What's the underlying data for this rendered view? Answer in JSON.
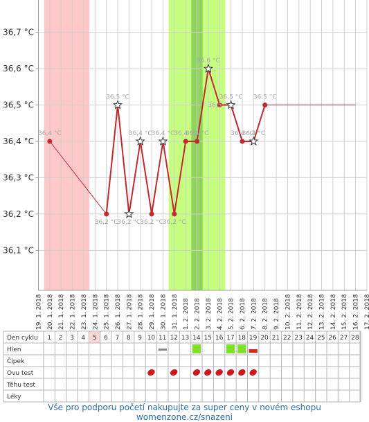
{
  "chart_data": {
    "type": "line",
    "y_ticks": [
      "36,1 °C",
      "36,2 °C",
      "36,3 °C",
      "36,4 °C",
      "36,5 °C",
      "36,6 °C",
      "36,7 °C"
    ],
    "y_tick_values": [
      36.1,
      36.2,
      36.3,
      36.4,
      36.5,
      36.6,
      36.7
    ],
    "ylim": [
      35.99,
      36.8
    ],
    "x_dates": [
      "19. 1. 2018",
      "20. 1. 2018",
      "21. 1. 2018",
      "22. 1. 2018",
      "23. 1. 2018",
      "24. 1. 2018",
      "25. 1. 2018",
      "26. 1. 2018",
      "27. 1. 2018",
      "28. 1. 2018",
      "29. 1. 2018",
      "30. 1. 2018",
      "31. 1. 2018",
      "1. 2. 2018",
      "2. 2. 2018",
      "3. 2. 2018",
      "4. 2. 2018",
      "5. 2. 2018",
      "6. 2. 2018",
      "7. 2. 2018",
      "8. 2. 2018",
      "9. 2. 2018",
      "10. 2. 2018",
      "11. 2. 2018",
      "12. 2. 2018",
      "13. 2. 2018",
      "14. 2. 2018",
      "15. 2. 2018",
      "16. 2. 2018",
      "17. 2. 2018"
    ],
    "series": [
      {
        "color": "#c0282d",
        "points": [
          {
            "x": "20. 1. 2018",
            "y": 36.4,
            "label": "36,4 °C",
            "marker": "dot"
          },
          {
            "x": "25. 1. 2018",
            "y": 36.2,
            "label": "36,2 °C",
            "marker": "dot"
          },
          {
            "x": "26. 1. 2018",
            "y": 36.5,
            "label": "36,5 °C",
            "marker": "star"
          },
          {
            "x": "27. 1. 2018",
            "y": 36.2,
            "label": "36,2 °C",
            "marker": "star"
          },
          {
            "x": "28. 1. 2018",
            "y": 36.4,
            "label": "36,4 °C",
            "marker": "star"
          },
          {
            "x": "29. 1. 2018",
            "y": 36.2,
            "label": "36,2 °C",
            "marker": "dot"
          },
          {
            "x": "30. 1. 2018",
            "y": 36.4,
            "label": "36,4 °C",
            "marker": "star"
          },
          {
            "x": "31. 1. 2018",
            "y": 36.2,
            "label": "36,2 °C",
            "marker": "dot"
          },
          {
            "x": "1. 2. 2018",
            "y": 36.4,
            "label": "36,4 °C",
            "marker": "dot"
          },
          {
            "x": "2. 2. 2018",
            "y": 36.4,
            "label": "36,4 °C",
            "marker": "dot"
          },
          {
            "x": "3. 2. 2018",
            "y": 36.6,
            "label": "36,6 °C",
            "marker": "star"
          },
          {
            "x": "4. 2. 2018",
            "y": 36.5,
            "label": "36,5 °C",
            "marker": "dot"
          },
          {
            "x": "5. 2. 2018",
            "y": 36.5,
            "label": "36,5 °C",
            "marker": "star"
          },
          {
            "x": "6. 2. 2018",
            "y": 36.4,
            "label": "36,4 °C",
            "marker": "dot"
          },
          {
            "x": "7. 2. 2018",
            "y": 36.4,
            "label": "36,4 °C",
            "marker": "star"
          },
          {
            "x": "8. 2. 2018",
            "y": 36.5,
            "label": "36,5 °C",
            "marker": "dot"
          }
        ],
        "extension": {
          "from": "8. 2. 2018",
          "to": "16. 2. 2018",
          "y": 36.5
        }
      }
    ],
    "bands": [
      {
        "from": "20. 1. 2018",
        "to": "23. 1. 2018",
        "color": "#ffc8c8"
      },
      {
        "from": "31. 1. 2018",
        "to": "4. 2. 2018",
        "color": "#c6ff80"
      },
      {
        "from": "2. 2. 2018",
        "to": "2. 2. 2018",
        "color": "#8fd45c"
      }
    ],
    "grid": true,
    "table": {
      "row_labels": [
        "Den cyklu",
        "Hlen",
        "Čípek",
        "Ovu test",
        "Těhu test",
        "Léky"
      ],
      "cycle_days": [
        "1",
        "2",
        "3",
        "4",
        "5",
        "6",
        "7",
        "8",
        "9",
        "10",
        "11",
        "12",
        "13",
        "14",
        "15",
        "16",
        "17",
        "18",
        "19",
        "20",
        "21",
        "22",
        "23",
        "24",
        "25",
        "26",
        "27",
        "28"
      ],
      "highlight_day": "5",
      "hlen_green_days": [
        "14",
        "17",
        "18"
      ],
      "hlen_red_days": [
        "19"
      ],
      "cipek_gray_days": [
        "11"
      ],
      "ovu_test_days": [
        "10",
        "12",
        "14",
        "15",
        "16",
        "17",
        "18",
        "19"
      ]
    }
  },
  "footer": "Vše pro podporu početí nakupujte za super ceny v novém eshopu womenzone.cz/snazeni"
}
